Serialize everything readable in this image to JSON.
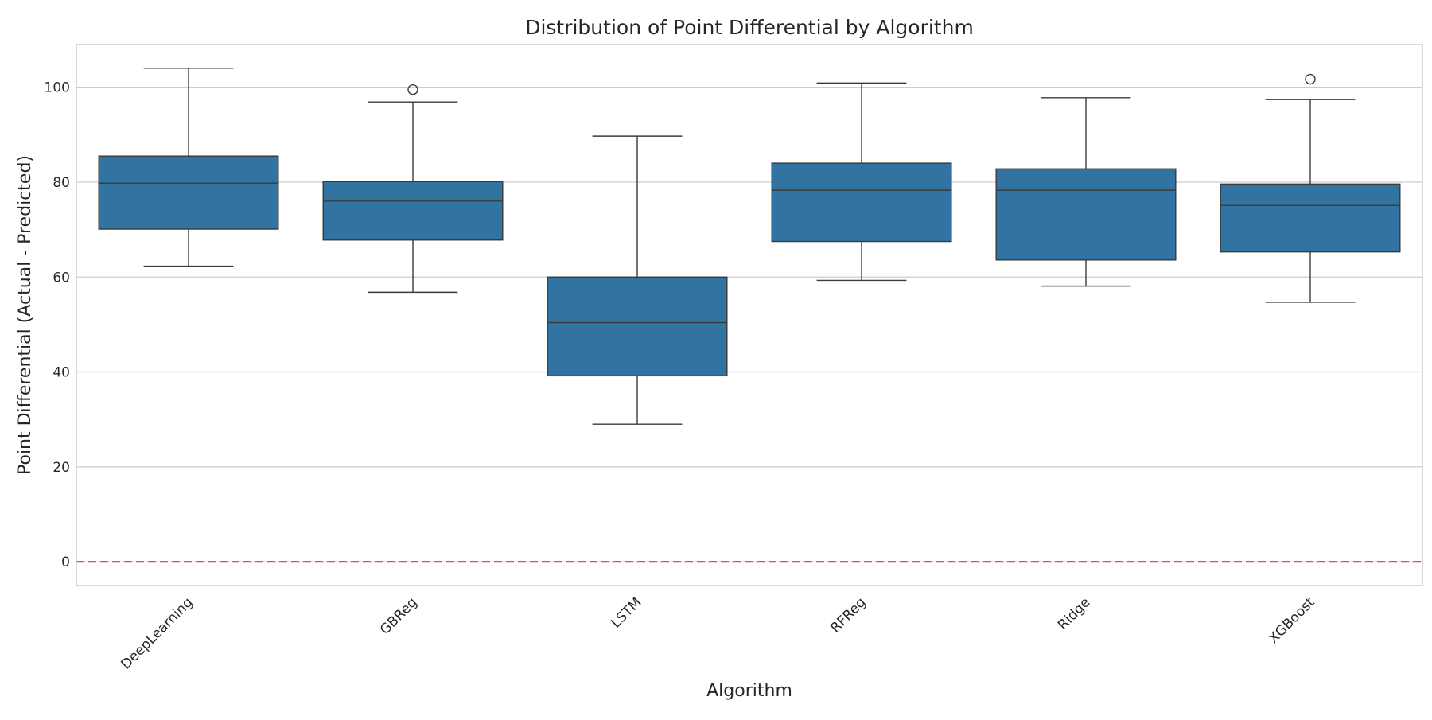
{
  "chart_data": {
    "type": "box",
    "title": "Distribution of Point Differential by Algorithm",
    "xlabel": "Algorithm",
    "ylabel": "Point Differential (Actual - Predicted)",
    "ylim": [
      -5,
      109
    ],
    "yticks": [
      0,
      20,
      40,
      60,
      80,
      100
    ],
    "grid": "horizontal",
    "box_color": "#3274a1",
    "reference_line": {
      "y": 0,
      "color": "#e83a3a",
      "style": "dashed"
    },
    "categories": [
      "DeepLearning",
      "GBReg",
      "LSTM",
      "RFReg",
      "Ridge",
      "XGBoost"
    ],
    "boxes": [
      {
        "category": "DeepLearning",
        "whisker_low": 62.3,
        "q1": 70.1,
        "median": 79.8,
        "q3": 85.5,
        "whisker_high": 104.0,
        "outliers": []
      },
      {
        "category": "GBReg",
        "whisker_low": 56.8,
        "q1": 67.8,
        "median": 76.0,
        "q3": 80.1,
        "whisker_high": 96.9,
        "outliers": [
          99.5
        ]
      },
      {
        "category": "LSTM",
        "whisker_low": 29.0,
        "q1": 39.2,
        "median": 50.4,
        "q3": 60.0,
        "whisker_high": 89.7,
        "outliers": []
      },
      {
        "category": "RFReg",
        "whisker_low": 59.3,
        "q1": 67.5,
        "median": 78.3,
        "q3": 84.0,
        "whisker_high": 100.9,
        "outliers": []
      },
      {
        "category": "Ridge",
        "whisker_low": 58.1,
        "q1": 63.6,
        "median": 78.3,
        "q3": 82.8,
        "whisker_high": 97.8,
        "outliers": []
      },
      {
        "category": "XGBoost",
        "whisker_low": 54.7,
        "q1": 65.3,
        "median": 75.1,
        "q3": 79.6,
        "whisker_high": 97.4,
        "outliers": [
          101.7
        ]
      }
    ]
  }
}
